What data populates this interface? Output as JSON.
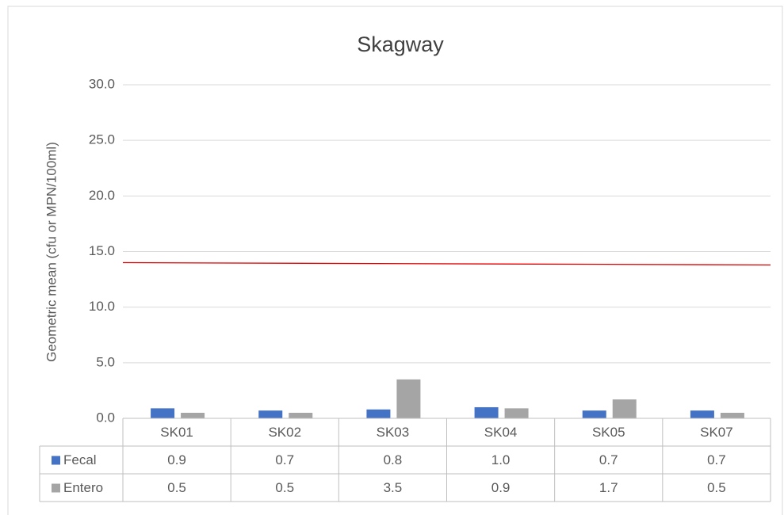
{
  "chart_data": {
    "type": "bar",
    "title": "Skagway",
    "y_label": "Geometric mean (cfu or MPN/100ml)",
    "categories": [
      "SK01",
      "SK02",
      "SK03",
      "SK04",
      "SK05",
      "SK07"
    ],
    "series": [
      {
        "name": "Fecal",
        "color": "#4472c4",
        "values": [
          0.9,
          0.7,
          0.8,
          1.0,
          0.7,
          0.7
        ],
        "value_labels": [
          "0.9",
          "0.7",
          "0.8",
          "1.0",
          "0.7",
          "0.7"
        ]
      },
      {
        "name": "Entero",
        "color": "#a5a5a5",
        "values": [
          0.5,
          0.5,
          3.5,
          0.9,
          1.7,
          0.5
        ],
        "value_labels": [
          "0.5",
          "0.5",
          "3.5",
          "0.9",
          "1.7",
          "0.5"
        ]
      }
    ],
    "reference_line": {
      "values": [
        14.0,
        13.8
      ],
      "color": "#e00000"
    },
    "ylim": [
      0,
      30
    ],
    "yticks": [
      {
        "value": 0,
        "label": "0.0"
      },
      {
        "value": 5,
        "label": "5.0"
      },
      {
        "value": 10,
        "label": "10.0"
      },
      {
        "value": 15,
        "label": "15.0"
      },
      {
        "value": 20,
        "label": "20.0"
      },
      {
        "value": 25,
        "label": "25.0"
      },
      {
        "value": 30,
        "label": "30.0"
      }
    ],
    "grid": true
  }
}
